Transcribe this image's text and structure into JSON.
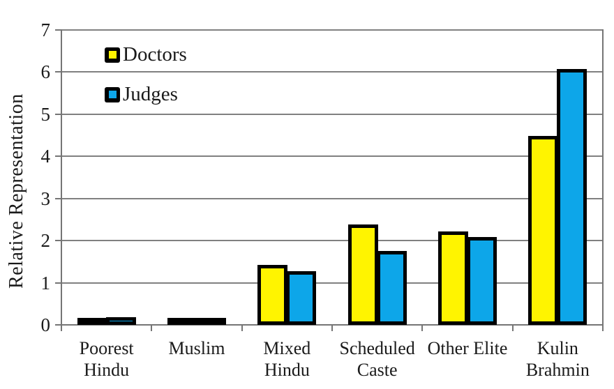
{
  "chart_data": {
    "type": "bar",
    "title": "",
    "xlabel": "",
    "ylabel": "Relative Representation",
    "categories": [
      "Poorest\nHindu",
      "Muslim",
      "Mixed\nHindu",
      "Scheduled\nCaste",
      "Other Elite",
      "Kulin\nBrahmin"
    ],
    "series": [
      {
        "name": "Doctors",
        "color": "#FFF400",
        "values": [
          0.08,
          0.12,
          1.42,
          2.38,
          2.21,
          4.48
        ]
      },
      {
        "name": "Judges",
        "color": "#0DA6E9",
        "values": [
          0.19,
          0.15,
          1.28,
          1.76,
          2.08,
          6.08
        ]
      }
    ],
    "ylim": [
      0,
      7
    ],
    "yticks": [
      0,
      1,
      2,
      3,
      4,
      5,
      6,
      7
    ],
    "grid": true,
    "legend_position": "top-left-inside",
    "bar_border_color": "#000000",
    "gridline_color": "#808080",
    "axis_color": "#757575",
    "text_color": "#1A1A1A"
  }
}
